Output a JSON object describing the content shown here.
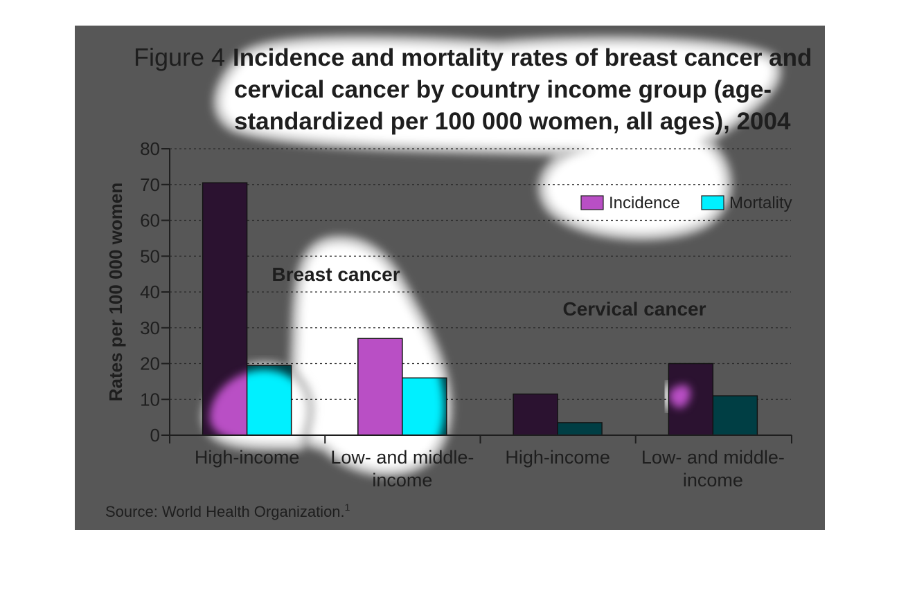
{
  "figure": {
    "label": "Figure 4",
    "title_lines": [
      "Incidence and mortality rates of breast cancer and",
      "cervical cancer by country income group (age-",
      "standardized per 100 000 women, all ages), 2004"
    ],
    "source": "Source: World Health Organization.",
    "source_sup": "1"
  },
  "colors": {
    "panel": "#575757",
    "incidence": "#b94fc5",
    "incidence_shaded": "#2b1230",
    "mortality": "#00f0ff",
    "mortality_shaded": "#003e44",
    "axis": "#1e1e1e",
    "grid": "#2a2a2a",
    "highlight": "#ffffff",
    "highlight_edge": "#c4c4c4"
  },
  "chart_data": {
    "type": "bar",
    "ylabel": "Rates per 100 000 women",
    "ylim": [
      0,
      80
    ],
    "yticks": [
      0,
      10,
      20,
      30,
      40,
      50,
      60,
      70,
      80
    ],
    "grid": true,
    "legend_position": "top-right",
    "groups": [
      {
        "name": "Breast cancer",
        "categories": [
          {
            "label_lines": [
              "High-income"
            ],
            "values": [
              70.5,
              19.5
            ]
          },
          {
            "label_lines": [
              "Low- and middle-",
              "income"
            ],
            "values": [
              27,
              16
            ]
          }
        ]
      },
      {
        "name": "Cervical cancer",
        "categories": [
          {
            "label_lines": [
              "High-income"
            ],
            "values": [
              11.5,
              3.5
            ]
          },
          {
            "label_lines": [
              "Low- and middle-",
              "income"
            ],
            "values": [
              20,
              11
            ]
          }
        ]
      }
    ],
    "series": [
      {
        "name": "Incidence",
        "values": [
          70.5,
          27,
          11.5,
          20
        ]
      },
      {
        "name": "Mortality",
        "values": [
          19.5,
          16,
          3.5,
          11
        ]
      }
    ]
  }
}
